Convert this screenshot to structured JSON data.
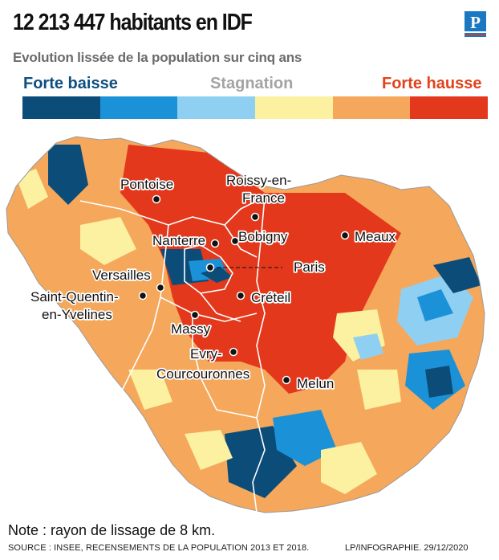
{
  "header": {
    "title": "12 213 447 habitants en IDF",
    "subtitle": "Evolution lissée de la population sur cinq ans",
    "logo_letter": "P"
  },
  "legend": {
    "low_label": "Forte baisse",
    "mid_label": "Stagnation",
    "high_label": "Forte hausse",
    "colors": [
      "#0c4c78",
      "#1b92d8",
      "#8fd0f2",
      "#fbf1a1",
      "#f5a75b",
      "#e3381b"
    ]
  },
  "cities": [
    {
      "name": "Pontoise",
      "label": "Pontoise"
    },
    {
      "name": "Roissy-en-France",
      "label": "Roissy-en- France"
    },
    {
      "name": "Nanterre",
      "label": "Nanterre"
    },
    {
      "name": "Bobigny",
      "label": "Bobigny"
    },
    {
      "name": "Meaux",
      "label": "Meaux"
    },
    {
      "name": "Paris",
      "label": "Paris"
    },
    {
      "name": "Versailles",
      "label": "Versailles"
    },
    {
      "name": "Saint-Quentin-en-Yvelines",
      "label": "Saint-Quentin- en-Yvelines"
    },
    {
      "name": "Créteil",
      "label": "Créteil"
    },
    {
      "name": "Massy",
      "label": "Massy"
    },
    {
      "name": "Evry-Courcouronnes",
      "label": "Evry- Courcouronnes"
    },
    {
      "name": "Melun",
      "label": "Melun"
    }
  ],
  "footer": {
    "note": "Note : rayon de lissage de 8 km.",
    "source": "SOURCE : INSEE, RECENSEMENTS DE LA POPULATION 2013 ET 2018.",
    "credit": "LP/INFOGRAPHIE.  29/12/2020"
  }
}
